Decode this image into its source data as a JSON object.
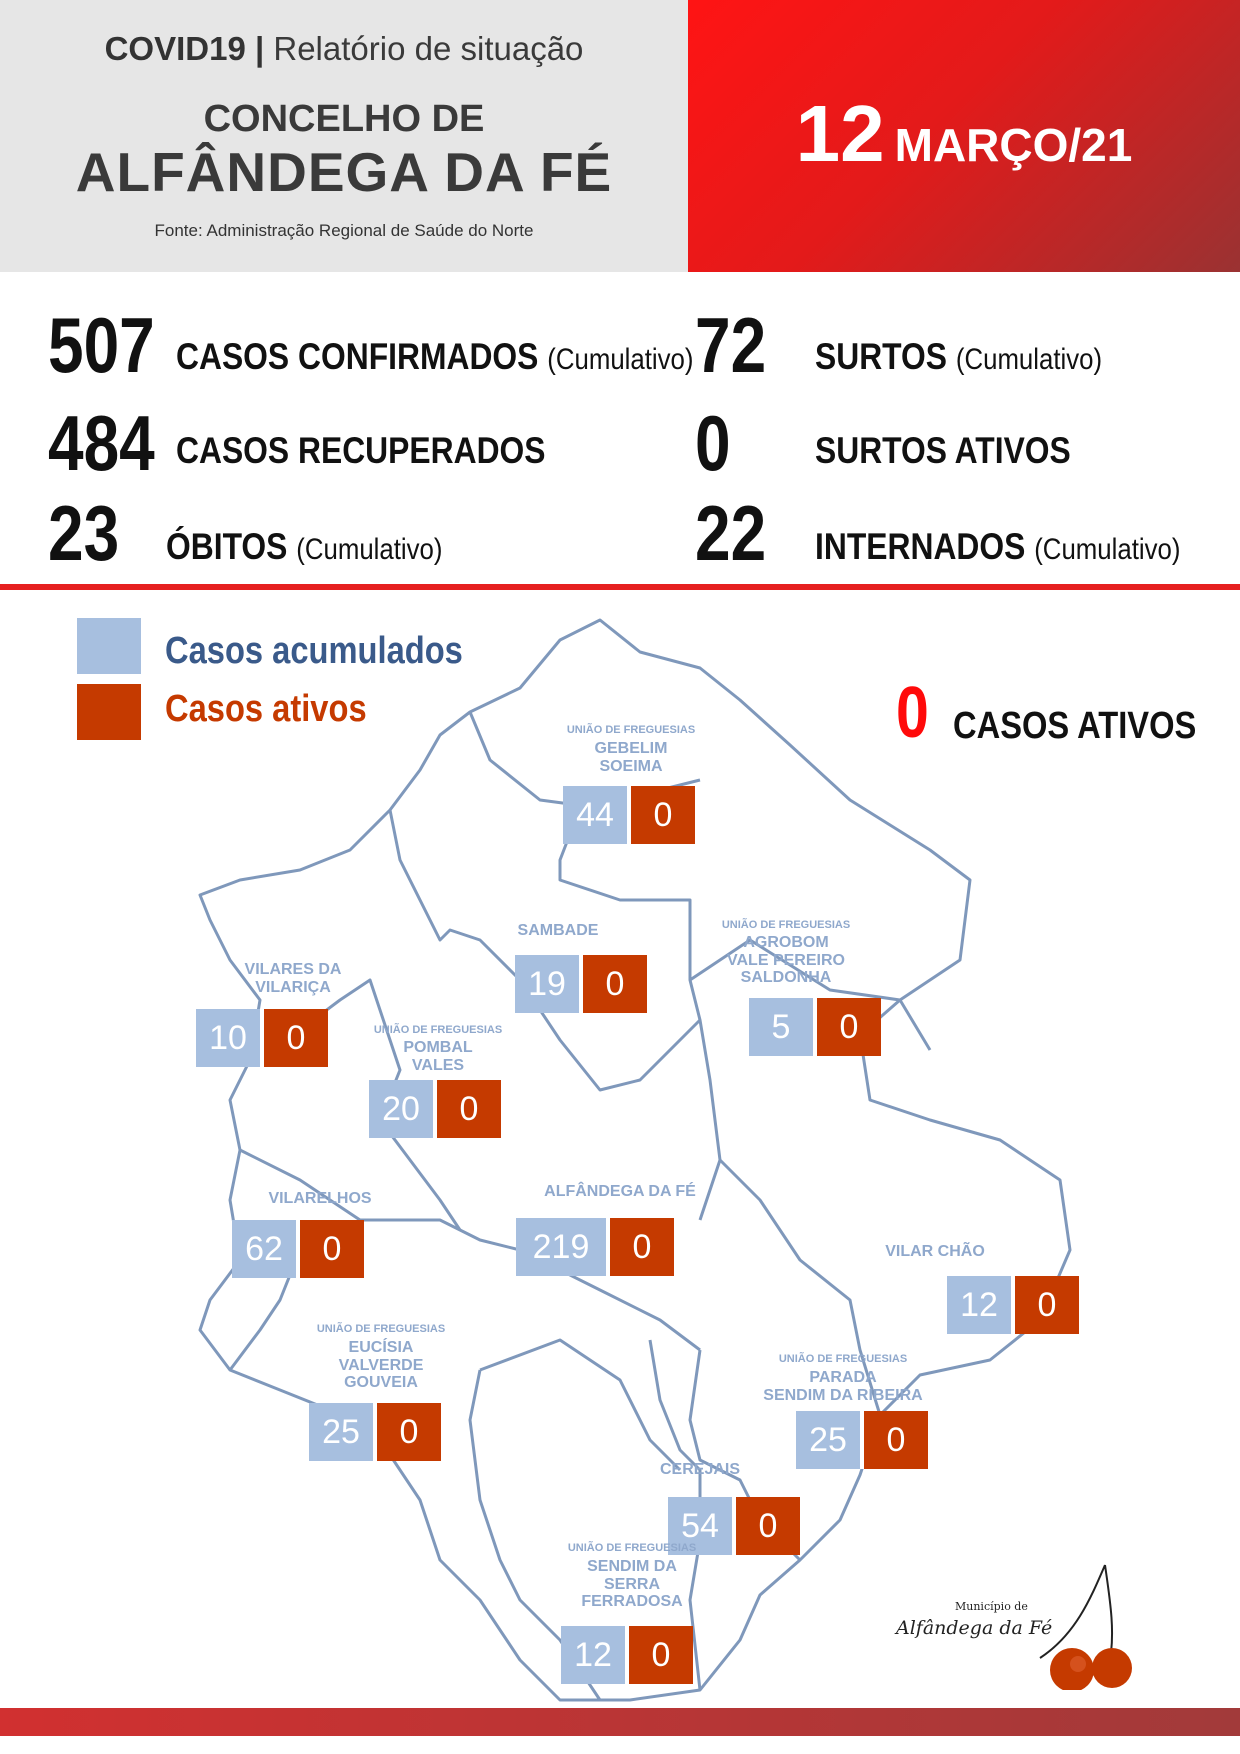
{
  "header": {
    "title": "COVID19",
    "separator": "|",
    "subtitle": "Relatório de situação",
    "concelho_label": "CONCELHO DE",
    "municipality": "ALFÂNDEGA DA FÉ",
    "source": "Fonte: Administração Regional de Saúde do Norte",
    "date_day": "12",
    "date_month_year": "MARÇO/21",
    "accent_color": "#e31a1a"
  },
  "stats": [
    {
      "value": "507",
      "label": "CASOS CONFIRMADOS",
      "note": "(Cumulativo)"
    },
    {
      "value": "484",
      "label": "CASOS RECUPERADOS",
      "note": ""
    },
    {
      "value": "23",
      "label": "ÓBITOS",
      "note": "(Cumulativo)"
    },
    {
      "value": "72",
      "label": "SURTOS",
      "note": "(Cumulativo)"
    },
    {
      "value": "0",
      "label": "SURTOS ATIVOS",
      "note": ""
    },
    {
      "value": "22",
      "label": "INTERNADOS",
      "note": "(Cumulativo)"
    }
  ],
  "legend": {
    "accumulated_label": "Casos acumulados",
    "accumulated_color": "#a7bfdf",
    "active_label": "Casos ativos",
    "active_color": "#c53a00"
  },
  "active_total": {
    "value": "0",
    "label": "CASOS ATIVOS"
  },
  "parishes": [
    {
      "note": "UNIÃO DE FREGUESIAS",
      "name": [
        "GEBELIM",
        "SOEIMA"
      ],
      "accumulated": "44",
      "active": "0"
    },
    {
      "note": "",
      "name": [
        "SAMBADE"
      ],
      "accumulated": "19",
      "active": "0"
    },
    {
      "note": "UNIÃO DE FREGUESIAS",
      "name": [
        "AGROBOM",
        "VALE PEREIRO",
        "SALDONHA"
      ],
      "accumulated": "5",
      "active": "0"
    },
    {
      "note": "",
      "name": [
        "VILARES DA",
        "VILARIÇA"
      ],
      "accumulated": "10",
      "active": "0"
    },
    {
      "note": "UNIÃO DE FREGUESIAS",
      "name": [
        "POMBAL",
        "VALES"
      ],
      "accumulated": "20",
      "active": "0"
    },
    {
      "note": "",
      "name": [
        "VILARELHOS"
      ],
      "accumulated": "62",
      "active": "0"
    },
    {
      "note": "",
      "name": [
        "ALFÂNDEGA DA FÉ"
      ],
      "accumulated": "219",
      "active": "0"
    },
    {
      "note": "",
      "name": [
        "VILAR CHÃO"
      ],
      "accumulated": "12",
      "active": "0"
    },
    {
      "note": "UNIÃO DE FREGUESIAS",
      "name": [
        "EUCÍSIA",
        "VALVERDE",
        "GOUVEIA"
      ],
      "accumulated": "25",
      "active": "0"
    },
    {
      "note": "UNIÃO DE FREGUESIAS",
      "name": [
        "PARADA",
        "SENDIM DA RIBEIRA"
      ],
      "accumulated": "25",
      "active": "0"
    },
    {
      "note": "",
      "name": [
        "CEREJAIS"
      ],
      "accumulated": "54",
      "active": "0"
    },
    {
      "note": "UNIÃO DE FREGUESIAS",
      "name": [
        "SENDIM DA",
        "SERRA",
        "FERRADOSA"
      ],
      "accumulated": "12",
      "active": "0"
    }
  ],
  "logo": {
    "line1": "Município de",
    "line2": "Alfândega da Fé"
  }
}
